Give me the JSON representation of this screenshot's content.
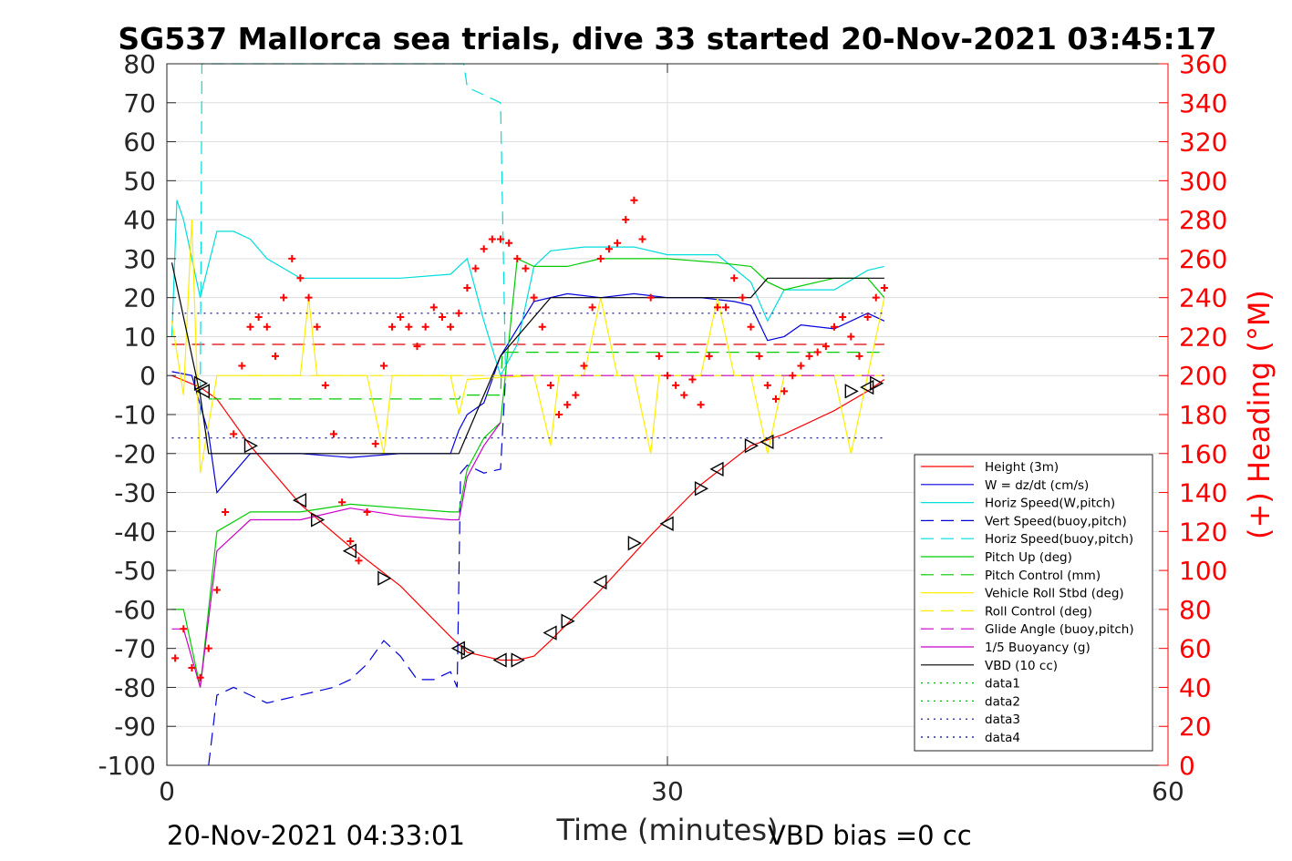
{
  "chart_data": {
    "type": "line",
    "title": "SG537 Mallorca sea trials, dive 33 started 20-Nov-2021 03:45:17",
    "xlabel": "Time (minutes)",
    "ylabel_right": "(+) Heading (°M)",
    "footer_left": "20-Nov-2021 04:33:01",
    "footer_right": "VBD bias =0 cc",
    "xlim": [
      0,
      60
    ],
    "ylim_left": [
      -100,
      80
    ],
    "ylim_right": [
      0,
      360
    ],
    "x_ticks": [
      "0",
      "30",
      "60"
    ],
    "x_tick_values": [
      0,
      30,
      60
    ],
    "y_ticks_left": [
      "80",
      "70",
      "60",
      "50",
      "40",
      "30",
      "20",
      "10",
      "0",
      "-10",
      "-20",
      "-30",
      "-40",
      "-50",
      "-60",
      "-70",
      "-80",
      "-90",
      "-100"
    ],
    "y_tick_values_left": [
      80,
      70,
      60,
      50,
      40,
      30,
      20,
      10,
      0,
      -10,
      -20,
      -30,
      -40,
      -50,
      -60,
      -70,
      -80,
      -90,
      -100
    ],
    "y_ticks_right": [
      "360",
      "340",
      "320",
      "300",
      "280",
      "260",
      "240",
      "220",
      "200",
      "180",
      "160",
      "140",
      "120",
      "100",
      "80",
      "60",
      "40",
      "20",
      "0"
    ],
    "y_tick_values_right": [
      360,
      340,
      320,
      300,
      280,
      260,
      240,
      220,
      200,
      180,
      160,
      140,
      120,
      100,
      80,
      60,
      40,
      20,
      0
    ],
    "grid": true,
    "legend_position": "bottom-right",
    "colors": {
      "right_axis": "#ff0000",
      "axis": "#262626",
      "grid": "#dedede"
    },
    "series": [
      {
        "name": "Height (3m)",
        "color": "#ff0000",
        "dash": "solid",
        "axis": "left",
        "x": [
          0.3,
          2.0,
          3.0,
          5.0,
          8.0,
          11.0,
          14.0,
          17.0,
          18.0,
          19.0,
          20.0,
          21.0,
          22.0,
          23.0,
          26.0,
          29.0,
          32.0,
          35.0,
          37.0,
          40.0,
          42.0,
          43.0
        ],
        "y": [
          0,
          -3,
          -6,
          -18,
          -33,
          -44,
          -54,
          -67,
          -71,
          -72,
          -73,
          -73,
          -72,
          -68,
          -55,
          -41,
          -28,
          -18,
          -15,
          -9,
          -4,
          -1
        ]
      },
      {
        "name": "W = dz/dt (cm/s)",
        "color": "#0000dd",
        "dash": "solid",
        "axis": "left",
        "x": [
          0.3,
          1.5,
          2.5,
          3.0,
          5.0,
          8.0,
          11.0,
          14.0,
          17.0,
          17.5,
          18.0,
          19.0,
          20.0,
          22.0,
          24.0,
          26.0,
          28.0,
          30.0,
          32.0,
          34.0,
          35.0,
          36.0,
          37.0,
          38.0,
          40.0,
          42.0,
          43.0
        ],
        "y": [
          1,
          0,
          -15,
          -30,
          -20,
          -20,
          -21,
          -20,
          -20,
          -14,
          -10,
          -7,
          5,
          19,
          21,
          20,
          21,
          20,
          20,
          19,
          18,
          9,
          10,
          13,
          12,
          16,
          14
        ]
      },
      {
        "name": "Horiz Speed(W,pitch)",
        "color": "#00dddd",
        "dash": "solid",
        "axis": "left",
        "x": [
          0.3,
          0.6,
          1.0,
          2.0,
          3.0,
          4.0,
          5.0,
          6.0,
          8.0,
          11.0,
          14.0,
          17.0,
          18.0,
          19.0,
          20.0,
          21.0,
          22.0,
          23.0,
          25.0,
          28.0,
          30.0,
          33.0,
          35.0,
          36.0,
          37.0,
          40.0,
          42.0,
          43.0
        ],
        "y": [
          10,
          45,
          40,
          20,
          37,
          37,
          35,
          30,
          25,
          25,
          25,
          26,
          30,
          14,
          0,
          8,
          28,
          32,
          33,
          33,
          31,
          31,
          24,
          14,
          22,
          22,
          27,
          28
        ]
      },
      {
        "name": "Vert Speed(buoy,pitch)",
        "color": "#0000dd",
        "dash": "dashed",
        "axis": "left",
        "x": [
          2.5,
          3.0,
          4.0,
          5.0,
          6.0,
          8.0,
          10.0,
          11.0,
          12.0,
          13.0,
          14.0,
          15.0,
          16.0,
          17.0,
          17.4,
          17.6,
          18.0,
          19.0,
          20.0,
          20.3
        ],
        "y": [
          -100,
          -82,
          -80,
          -82,
          -84,
          -82,
          -80,
          -78,
          -74,
          -68,
          -72,
          -78,
          -78,
          -76,
          -80,
          -25,
          -23,
          -25,
          -24,
          0
        ]
      },
      {
        "name": "Horiz Speed(buoy,pitch)",
        "color": "#00dddd",
        "dash": "dashed",
        "axis": "left",
        "x": [
          2.0,
          2.1,
          2.2,
          17.5,
          17.8,
          18.0,
          19.0,
          20.0,
          20.3
        ],
        "y": [
          -10,
          80,
          80,
          80,
          80,
          74,
          72,
          70,
          0
        ]
      },
      {
        "name": "Pitch Up (deg)",
        "color": "#00cc00",
        "dash": "solid",
        "axis": "left",
        "x": [
          0.3,
          1.0,
          2.0,
          3.0,
          5.0,
          8.0,
          11.0,
          14.0,
          17.0,
          17.5,
          18.0,
          19.0,
          20.0,
          21.0,
          22.0,
          24.0,
          26.0,
          28.0,
          30.0,
          33.0,
          35.0,
          36.0,
          37.0,
          40.0,
          42.0,
          43.0
        ],
        "y": [
          -60,
          -60,
          -80,
          -40,
          -35,
          -35,
          -33,
          -34,
          -35,
          -35,
          -24,
          -16,
          -12,
          30,
          28,
          28,
          30,
          30,
          30,
          29,
          28,
          24,
          22,
          25,
          25,
          20
        ]
      },
      {
        "name": "Pitch Control (mm)",
        "color": "#00cc00",
        "dash": "dashed",
        "axis": "left",
        "x": [
          2.5,
          17.5,
          17.6,
          20.0,
          20.1,
          43.0
        ],
        "y": [
          -6,
          -6,
          -5,
          -5,
          6,
          6
        ]
      },
      {
        "name": "Vehicle Roll Stbd (deg)",
        "color": "#ffee00",
        "dash": "solid",
        "axis": "left",
        "x": [
          0.3,
          1.0,
          1.5,
          2.0,
          3.0,
          4.0,
          5.0,
          8.0,
          8.5,
          9.0,
          12.0,
          13.0,
          13.5,
          17.0,
          17.5,
          18.0,
          22.0,
          23.0,
          23.5,
          25.0,
          26.0,
          27.0,
          28.0,
          29.0,
          29.5,
          32.0,
          33.0,
          34.0,
          35.0,
          36.0,
          37.0,
          40.0,
          41.0,
          42.0,
          43.0
        ],
        "y": [
          14,
          -5,
          40,
          -25,
          0,
          0,
          0,
          0,
          20,
          0,
          0,
          -20,
          0,
          0,
          -10,
          -1,
          0,
          -18,
          0,
          0,
          20,
          0,
          0,
          -20,
          0,
          0,
          20,
          0,
          0,
          -20,
          0,
          0,
          -20,
          0,
          20
        ]
      },
      {
        "name": "Roll Control (deg)",
        "color": "#ffee00",
        "dash": "dashed",
        "axis": "left",
        "x": [
          5.0,
          43.0
        ],
        "y": [
          0,
          0
        ]
      },
      {
        "name": "Glide Angle (buoy,pitch)",
        "color": "#cc00cc",
        "dash": "dashed",
        "axis": "left",
        "x": [
          20.0,
          43.0
        ],
        "y": [
          0,
          0
        ]
      },
      {
        "name": "1/5 Buoyancy (g)",
        "color": "#cc00cc",
        "dash": "solid",
        "axis": "left",
        "x": [
          0.3,
          1.0,
          2.0,
          3.0,
          5.0,
          8.0,
          11.0,
          14.0,
          17.0,
          17.5,
          18.0,
          19.0,
          20.0
        ],
        "y": [
          -65,
          -65,
          -80,
          -45,
          -37,
          -37,
          -34,
          -36,
          -37,
          -37,
          -26,
          -18,
          -12
        ]
      },
      {
        "name": "VBD (10 cc)",
        "color": "#000000",
        "dash": "solid",
        "axis": "left",
        "x": [
          0.3,
          2.0,
          2.5,
          17.5,
          20.0,
          23.0,
          35.0,
          36.0,
          43.0
        ],
        "y": [
          29,
          -5,
          -20,
          -20,
          5,
          20,
          20,
          25,
          25
        ]
      },
      {
        "name": "data1",
        "color": "#00bb00",
        "dash": "dotted",
        "axis": "left",
        "x": [],
        "y": []
      },
      {
        "name": "data2",
        "color": "#00bb00",
        "dash": "dotted",
        "axis": "left",
        "x": [],
        "y": []
      },
      {
        "name": "data3",
        "color": "#000088",
        "dash": "dotted",
        "axis": "left",
        "x": [
          0.3,
          43.0
        ],
        "y": [
          16,
          16
        ]
      },
      {
        "name": "data4",
        "color": "#000088",
        "dash": "dotted",
        "axis": "left",
        "x": [
          0.3,
          43.0
        ],
        "y": [
          -16,
          -16
        ]
      }
    ],
    "unlabeled_lines": [
      {
        "color": "#dd0000",
        "dash": "dashed",
        "axis": "left",
        "x": [
          0.3,
          43.0
        ],
        "y": [
          8,
          8
        ]
      }
    ],
    "heading_markers": {
      "color": "#ff0000",
      "marker": "+",
      "axis": "right",
      "x": [
        0.5,
        1.0,
        1.5,
        2.0,
        2.5,
        3.0,
        3.5,
        4.0,
        4.5,
        5.0,
        5.5,
        6.0,
        6.5,
        7.0,
        7.5,
        8.0,
        8.5,
        9.0,
        9.5,
        10.0,
        10.5,
        11.0,
        11.5,
        12.0,
        12.5,
        13.0,
        13.5,
        14.0,
        14.5,
        15.0,
        15.5,
        16.0,
        16.5,
        17.0,
        17.5,
        18.0,
        18.5,
        19.0,
        19.5,
        20.0,
        20.5,
        21.0,
        21.5,
        22.0,
        22.5,
        23.0,
        23.5,
        24.0,
        24.5,
        25.0,
        25.5,
        26.0,
        26.5,
        27.0,
        27.5,
        28.0,
        28.5,
        29.0,
        29.5,
        30.0,
        30.5,
        31.0,
        31.5,
        32.0,
        32.5,
        33.0,
        33.5,
        34.0,
        34.5,
        35.0,
        35.5,
        36.0,
        36.5,
        37.0,
        37.5,
        38.0,
        38.5,
        39.0,
        39.5,
        40.0,
        40.5,
        41.0,
        41.5,
        42.0,
        42.5,
        43.0
      ],
      "y": [
        55,
        70,
        50,
        45,
        60,
        90,
        130,
        170,
        205,
        225,
        230,
        225,
        210,
        240,
        260,
        250,
        240,
        225,
        195,
        170,
        135,
        115,
        105,
        130,
        165,
        205,
        225,
        230,
        225,
        215,
        225,
        235,
        230,
        225,
        232,
        245,
        255,
        265,
        270,
        270,
        268,
        260,
        255,
        240,
        225,
        195,
        180,
        185,
        190,
        205,
        235,
        260,
        265,
        268,
        280,
        290,
        270,
        240,
        210,
        200,
        195,
        190,
        198,
        185,
        210,
        235,
        235,
        250,
        240,
        225,
        210,
        195,
        188,
        192,
        200,
        205,
        210,
        212,
        215,
        225,
        230,
        220,
        210,
        230,
        240,
        245
      ]
    },
    "triangle_markers": {
      "color": "#000000",
      "axis": "left",
      "x": [
        2.0,
        2.2,
        5.0,
        8.0,
        9.0,
        11.0,
        13.0,
        17.5,
        18.0,
        20.0,
        21.0,
        23.0,
        24.0,
        26.0,
        28.0,
        30.0,
        32.0,
        33.0,
        35.0,
        36.0,
        41.0,
        42.0,
        42.5
      ],
      "y": [
        -2,
        -4,
        -18,
        -32,
        -37,
        -45,
        -52,
        -70,
        -71,
        -73,
        -73,
        -66,
        -63,
        -53,
        -43,
        -38,
        -29,
        -24,
        -18,
        -17,
        -4,
        -3,
        -2
      ]
    }
  }
}
